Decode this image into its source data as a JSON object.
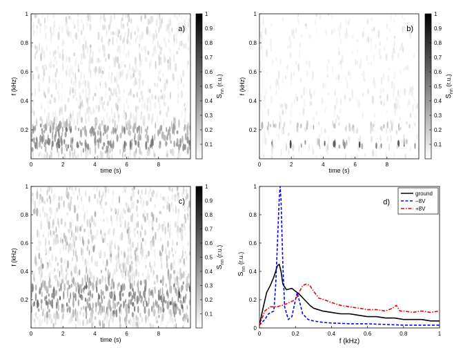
{
  "chart_data": [
    {
      "type": "heatmap",
      "panel": "a)",
      "xlabel": "time (s)",
      "ylabel": "f  (kHz)",
      "x_range": [
        0,
        10
      ],
      "y_range": [
        0,
        1
      ],
      "xticks": [
        "0",
        "2",
        "4",
        "6",
        "8"
      ],
      "yticks": [
        "0.2",
        "0.4",
        "0.6",
        "0.8",
        "1"
      ],
      "colorbar": {
        "label": "S",
        "label_sub": "nn",
        "label_unit": " (r.u.)",
        "range": [
          0,
          1
        ],
        "ticks": [
          "0.1",
          "0.2",
          "0.3",
          "0.4",
          "0.5",
          "0.6",
          "0.7",
          "0.8",
          "0.9",
          "1"
        ]
      },
      "bands": [
        {
          "f": 0.1,
          "width": 0.05,
          "intensity": 0.55
        },
        {
          "f": 0.2,
          "width": 0.05,
          "intensity": 0.4
        }
      ],
      "noise": 0.17
    },
    {
      "type": "heatmap",
      "panel": "b)",
      "xlabel": "time (s)",
      "ylabel": "f  (kHz)",
      "x_range": [
        0,
        10
      ],
      "y_range": [
        0,
        1
      ],
      "xticks": [
        "0",
        "2",
        "4",
        "6",
        "8"
      ],
      "yticks": [
        "0.2",
        "0.4",
        "0.6",
        "0.8",
        "1"
      ],
      "colorbar": {
        "label": "S",
        "label_sub": "nn",
        "label_unit": " (r.u.)",
        "range": [
          0,
          1
        ],
        "ticks": [
          "0.1",
          "0.2",
          "0.3",
          "0.4",
          "0.5",
          "0.6",
          "0.7",
          "0.8",
          "0.9",
          "1"
        ]
      },
      "bands": [
        {
          "f": 0.1,
          "width": 0.015,
          "intensity": 0.9
        },
        {
          "f": 0.22,
          "width": 0.02,
          "intensity": 0.3
        }
      ],
      "noise": 0.1
    },
    {
      "type": "heatmap",
      "panel": "c)",
      "xlabel": "time (s)",
      "ylabel": "f  (kHz)",
      "x_range": [
        0,
        10
      ],
      "y_range": [
        0,
        1
      ],
      "xticks": [
        "0",
        "2",
        "4",
        "6",
        "8"
      ],
      "yticks": [
        "0.2",
        "0.4",
        "0.6",
        "0.8",
        "1"
      ],
      "colorbar": {
        "label": "S",
        "label_sub": "nn",
        "label_unit": " (r.u.)",
        "range": [
          0,
          1
        ],
        "ticks": [
          "0.1",
          "0.2",
          "0.3",
          "0.4",
          "0.5",
          "0.6",
          "0.7",
          "0.8",
          "0.9",
          "1"
        ]
      },
      "bands": [
        {
          "f": 0.22,
          "width": 0.12,
          "intensity": 0.45
        }
      ],
      "noise": 0.28
    },
    {
      "type": "line",
      "panel": "d)",
      "xlabel": "f  (kHz)",
      "ylabel": "S",
      "ylabel_sub": "nn",
      "ylabel_unit": " (r.u.)",
      "xlim": [
        0,
        1
      ],
      "ylim": [
        0,
        1
      ],
      "xticks": [
        "0",
        "0.2",
        "0.4",
        "0.6",
        "0.8",
        "1"
      ],
      "yticks": [
        "0",
        "0.2",
        "0.4",
        "0.6",
        "0.8",
        "1"
      ],
      "legend_position": "top-right",
      "series": [
        {
          "name": "ground",
          "color": "#000000",
          "style": "solid",
          "x": [
            0,
            0.02,
            0.04,
            0.06,
            0.08,
            0.1,
            0.11,
            0.12,
            0.13,
            0.15,
            0.18,
            0.2,
            0.22,
            0.25,
            0.28,
            0.3,
            0.35,
            0.4,
            0.45,
            0.5,
            0.55,
            0.6,
            0.65,
            0.7,
            0.75,
            0.8,
            0.85,
            0.9,
            0.95,
            1.0
          ],
          "y": [
            0.02,
            0.14,
            0.25,
            0.3,
            0.36,
            0.44,
            0.45,
            0.4,
            0.31,
            0.27,
            0.28,
            0.26,
            0.24,
            0.2,
            0.16,
            0.14,
            0.12,
            0.11,
            0.1,
            0.1,
            0.09,
            0.08,
            0.08,
            0.07,
            0.07,
            0.06,
            0.06,
            0.06,
            0.05,
            0.05
          ]
        },
        {
          "name": "−8V",
          "color": "#0000ee",
          "style": "dashed",
          "x": [
            0,
            0.03,
            0.05,
            0.08,
            0.09,
            0.1,
            0.11,
            0.115,
            0.12,
            0.13,
            0.14,
            0.16,
            0.18,
            0.2,
            0.21,
            0.22,
            0.24,
            0.27,
            0.3,
            0.35,
            0.4,
            0.5,
            0.6,
            0.7,
            0.8,
            0.9,
            1.0
          ],
          "y": [
            0.02,
            0.06,
            0.1,
            0.12,
            0.3,
            0.6,
            0.92,
            1.0,
            0.9,
            0.45,
            0.15,
            0.06,
            0.08,
            0.2,
            0.25,
            0.2,
            0.1,
            0.06,
            0.05,
            0.04,
            0.035,
            0.03,
            0.03,
            0.025,
            0.02,
            0.02,
            0.02
          ]
        },
        {
          "name": "+8V",
          "color": "#ee0000",
          "style": "dashdot",
          "x": [
            0,
            0.03,
            0.06,
            0.1,
            0.15,
            0.2,
            0.22,
            0.24,
            0.26,
            0.28,
            0.3,
            0.33,
            0.36,
            0.4,
            0.45,
            0.5,
            0.55,
            0.6,
            0.65,
            0.7,
            0.74,
            0.76,
            0.78,
            0.8,
            0.85,
            0.9,
            0.95,
            1.0
          ],
          "y": [
            0.02,
            0.12,
            0.15,
            0.15,
            0.17,
            0.2,
            0.25,
            0.3,
            0.31,
            0.3,
            0.26,
            0.21,
            0.2,
            0.18,
            0.16,
            0.15,
            0.14,
            0.13,
            0.13,
            0.12,
            0.14,
            0.16,
            0.12,
            0.12,
            0.11,
            0.12,
            0.11,
            0.12
          ]
        }
      ]
    }
  ]
}
